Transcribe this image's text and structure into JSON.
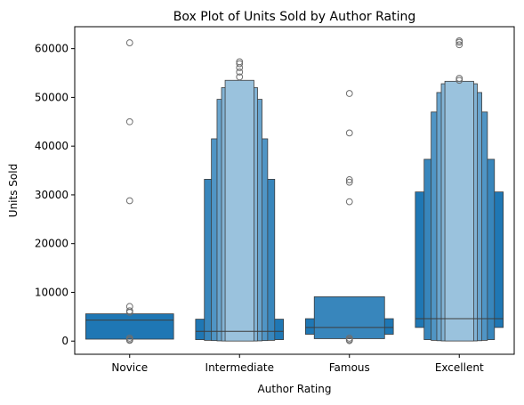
{
  "chart_data": {
    "type": "boxen",
    "title": "Box Plot of Units Sold by Author Rating",
    "xlabel": "Author Rating",
    "ylabel": "Units Sold",
    "ylim": [
      -2700,
      64500
    ],
    "yticks": [
      0,
      10000,
      20000,
      30000,
      40000,
      50000,
      60000
    ],
    "ytick_labels": [
      "0",
      "10000",
      "20000",
      "30000",
      "40000",
      "50000",
      "60000"
    ],
    "categories": [
      "Novice",
      "Intermediate",
      "Famous",
      "Excellent"
    ],
    "grid": false,
    "color": "#1f77b4",
    "outlier_color": "#6e6e6e",
    "groups": [
      {
        "category": "Novice",
        "median": 4300,
        "levels": [
          {
            "low": 400,
            "high": 5600
          }
        ],
        "outliers": [
          61200,
          45000,
          28800,
          7100,
          6200,
          5900,
          600,
          300,
          150
        ]
      },
      {
        "category": "Intermediate",
        "median": 2000,
        "levels": [
          {
            "low": 300,
            "high": 4500
          },
          {
            "low": 150,
            "high": 33200
          },
          {
            "low": 100,
            "high": 41500
          },
          {
            "low": 50,
            "high": 49600
          },
          {
            "low": 20,
            "high": 52000
          },
          {
            "low": 10,
            "high": 53500
          }
        ],
        "outliers": [
          57300,
          56900,
          56100,
          55200,
          54200
        ]
      },
      {
        "category": "Famous",
        "median": 2800,
        "levels": [
          {
            "low": 1400,
            "high": 4600
          },
          {
            "low": 500,
            "high": 9100
          }
        ],
        "outliers": [
          50800,
          42700,
          33100,
          32600,
          28600,
          600,
          300,
          100
        ]
      },
      {
        "category": "Excellent",
        "median": 4600,
        "levels": [
          {
            "low": 2800,
            "high": 30600
          },
          {
            "low": 300,
            "high": 37300
          },
          {
            "low": 150,
            "high": 47000
          },
          {
            "low": 80,
            "high": 51000
          },
          {
            "low": 40,
            "high": 52800
          },
          {
            "low": 20,
            "high": 53300
          }
        ],
        "outliers": [
          61600,
          61300,
          60800,
          53900,
          53500
        ]
      }
    ]
  }
}
